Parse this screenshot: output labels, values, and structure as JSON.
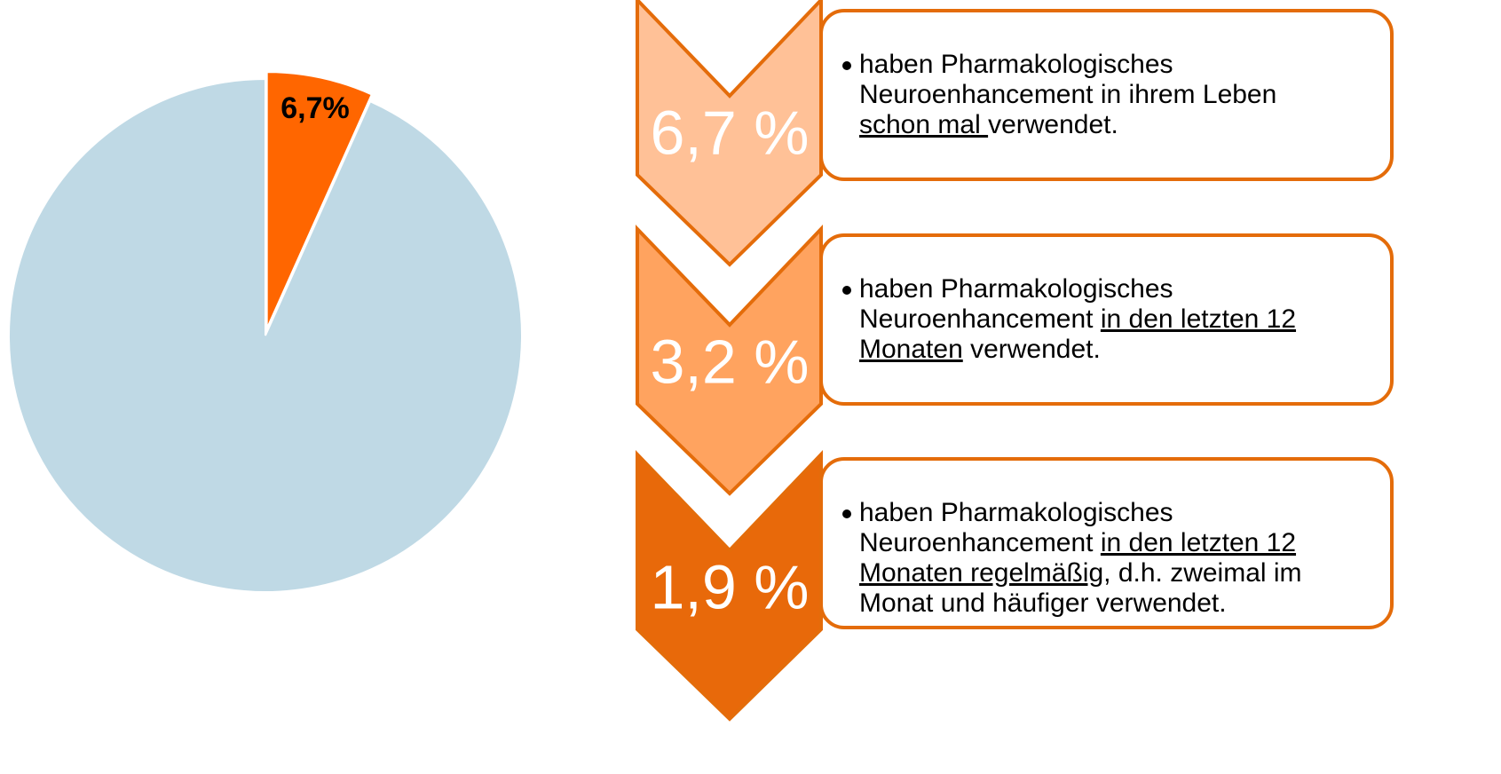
{
  "chart_data": {
    "type": "pie",
    "values": [
      6.7,
      93.3
    ],
    "value_labels": [
      "6,7%",
      null
    ],
    "colors": [
      "#ff6600",
      "#bfd9e5"
    ]
  },
  "items": [
    {
      "label": "6,7 %",
      "color": "#ffc197",
      "lines": [
        [
          {
            "text": "haben Pharmakologisches",
            "u": false
          }
        ],
        [
          {
            "text": "Neuroenhancement in ihrem Leben",
            "u": false
          }
        ],
        [
          {
            "text": "schon mal ",
            "u": true
          },
          {
            "text": "verwendet.",
            "u": false
          }
        ]
      ]
    },
    {
      "label": "3,2 %",
      "color": "#ffa35f",
      "lines": [
        [
          {
            "text": "haben Pharmakologisches",
            "u": false
          }
        ],
        [
          {
            "text": "Neuroenhancement ",
            "u": false
          },
          {
            "text": "in den letzten 12",
            "u": true
          }
        ],
        [
          {
            "text": "Monaten",
            "u": true
          },
          {
            "text": " verwendet.",
            "u": false
          }
        ]
      ]
    },
    {
      "label": "1,9 %",
      "color": "#e8690a",
      "lines": [
        [
          {
            "text": "haben Pharmakologisches",
            "u": false
          }
        ],
        [
          {
            "text": "Neuroenhancement ",
            "u": false
          },
          {
            "text": "in den letzten 12",
            "u": true
          }
        ],
        [
          {
            "text": "Monaten regelmäßig",
            "u": true
          },
          {
            "text": ", d.h. zweimal im",
            "u": false
          }
        ],
        [
          {
            "text": "Monat und häufiger verwendet.",
            "u": false
          }
        ]
      ]
    }
  ]
}
